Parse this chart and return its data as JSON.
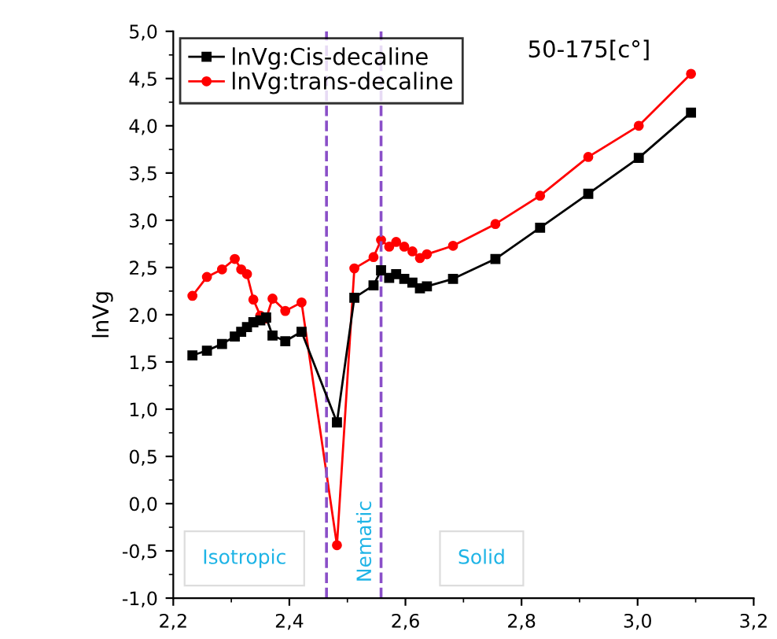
{
  "chart_data": {
    "type": "line",
    "ylabel": "lnVg",
    "xlim": [
      2.2,
      3.2
    ],
    "xticks": [
      {
        "value": 2.2,
        "label": "2,2"
      },
      {
        "value": 2.4,
        "label": "2,4"
      },
      {
        "value": 2.6,
        "label": "2,6"
      },
      {
        "value": 2.8,
        "label": "2,8"
      },
      {
        "value": 3.0,
        "label": "3,0"
      },
      {
        "value": 3.2,
        "label": "3,2"
      }
    ],
    "ylim": [
      -1.0,
      5.0
    ],
    "yticks": [
      {
        "value": -1.0,
        "label": "-1,0"
      },
      {
        "value": -0.5,
        "label": "-0,5"
      },
      {
        "value": 0.0,
        "label": "0,0"
      },
      {
        "value": 0.5,
        "label": "0,5"
      },
      {
        "value": 1.0,
        "label": "1,0"
      },
      {
        "value": 1.5,
        "label": "1,5"
      },
      {
        "value": 2.0,
        "label": "2,0"
      },
      {
        "value": 2.5,
        "label": "2,5"
      },
      {
        "value": 3.0,
        "label": "3,0"
      },
      {
        "value": 3.5,
        "label": "3,5"
      },
      {
        "value": 4.0,
        "label": "4,0"
      },
      {
        "value": 4.5,
        "label": "4,5"
      },
      {
        "value": 5.0,
        "label": "5,0"
      }
    ],
    "grid": false,
    "legend": "top left",
    "series": [
      {
        "name": "lnVg:Cis-decaline",
        "color": "#000000",
        "marker": "square",
        "x": [
          2.233,
          2.258,
          2.284,
          2.306,
          2.317,
          2.327,
          2.338,
          2.35,
          2.36,
          2.371,
          2.393,
          2.421,
          2.482,
          2.512,
          2.545,
          2.558,
          2.572,
          2.584,
          2.598,
          2.612,
          2.625,
          2.637,
          2.682,
          2.755,
          2.832,
          2.915,
          3.002,
          3.092
        ],
        "values": [
          1.57,
          1.62,
          1.69,
          1.77,
          1.82,
          1.87,
          1.92,
          1.94,
          1.97,
          1.78,
          1.72,
          1.82,
          0.86,
          2.18,
          2.31,
          2.47,
          2.39,
          2.43,
          2.38,
          2.34,
          2.28,
          2.3,
          2.38,
          2.59,
          2.92,
          3.28,
          3.66,
          4.14
        ]
      },
      {
        "name": "lnVg:trans-decaline",
        "color": "#ff0000",
        "marker": "circle",
        "x": [
          2.233,
          2.258,
          2.284,
          2.306,
          2.317,
          2.327,
          2.338,
          2.35,
          2.36,
          2.371,
          2.393,
          2.421,
          2.482,
          2.512,
          2.545,
          2.558,
          2.572,
          2.584,
          2.598,
          2.612,
          2.625,
          2.637,
          2.682,
          2.755,
          2.832,
          2.915,
          3.002,
          3.092
        ],
        "values": [
          2.2,
          2.4,
          2.48,
          2.59,
          2.48,
          2.43,
          2.16,
          1.99,
          1.96,
          2.17,
          2.04,
          2.13,
          -0.44,
          2.49,
          2.61,
          2.79,
          2.72,
          2.77,
          2.72,
          2.67,
          2.6,
          2.64,
          2.73,
          2.96,
          3.26,
          3.67,
          4.0,
          4.55
        ]
      }
    ],
    "ref_lines": [
      {
        "axis": "x",
        "value": 2.464,
        "color": "#8a4fc8",
        "line_style": "dashed"
      },
      {
        "axis": "x",
        "value": 2.558,
        "color": "#8a4fc8",
        "line_style": "dashed"
      }
    ],
    "annotations": [
      "50-175[c°]",
      "Isotropic",
      "Nematic",
      "Solid"
    ]
  }
}
